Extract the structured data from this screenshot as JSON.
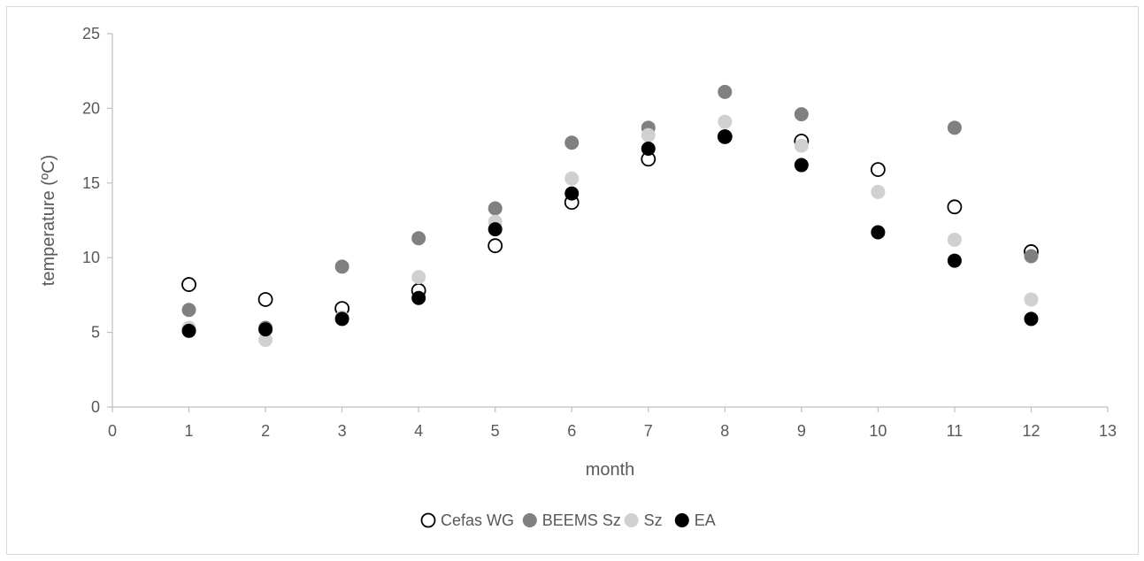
{
  "chart_data": {
    "type": "scatter",
    "title": "",
    "xlabel": "month",
    "ylabel": "temperature (ºC)",
    "xlim": [
      0,
      13
    ],
    "ylim": [
      0,
      25
    ],
    "xticks": [
      0,
      1,
      2,
      3,
      4,
      5,
      6,
      7,
      8,
      9,
      10,
      11,
      12,
      13
    ],
    "yticks": [
      0,
      5,
      10,
      15,
      20,
      25
    ],
    "grid": false,
    "legend_position": "bottom",
    "series": [
      {
        "name": "Cefas WG",
        "marker": "open-circle",
        "color": "#000000",
        "x": [
          1,
          2,
          3,
          4,
          5,
          6,
          7,
          8,
          9,
          10,
          11,
          12
        ],
        "y": [
          8.2,
          7.2,
          6.6,
          7.8,
          10.8,
          13.7,
          16.6,
          18.1,
          17.8,
          15.9,
          13.4,
          10.4
        ]
      },
      {
        "name": "BEEMS Sz",
        "marker": "filled-circle",
        "color": "#808080",
        "x": [
          1,
          2,
          3,
          4,
          5,
          6,
          7,
          8,
          9,
          10,
          11,
          12
        ],
        "y": [
          6.5,
          5.3,
          9.4,
          11.3,
          13.3,
          17.7,
          18.7,
          21.1,
          19.6,
          11.7,
          18.7,
          10.1
        ]
      },
      {
        "name": "Sz",
        "marker": "filled-circle",
        "color": "#d0d0d0",
        "x": [
          1,
          2,
          3,
          4,
          5,
          6,
          7,
          8,
          9,
          10,
          11,
          12
        ],
        "y": [
          5.3,
          4.5,
          6.0,
          8.7,
          12.4,
          15.3,
          18.2,
          19.1,
          17.5,
          14.4,
          11.2,
          7.2
        ]
      },
      {
        "name": "EA",
        "marker": "filled-circle",
        "color": "#000000",
        "x": [
          1,
          2,
          3,
          4,
          5,
          6,
          7,
          8,
          9,
          10,
          11,
          12
        ],
        "y": [
          5.1,
          5.2,
          5.9,
          7.3,
          11.9,
          14.3,
          17.3,
          18.1,
          16.2,
          11.7,
          9.8,
          5.9
        ]
      }
    ]
  }
}
